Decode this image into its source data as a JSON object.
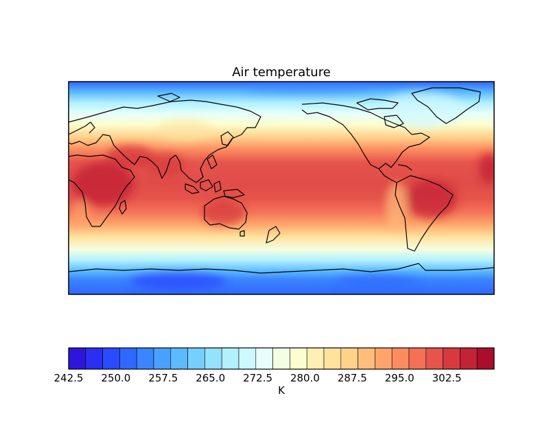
{
  "title": "Air temperature",
  "colorbar": {
    "label": "K",
    "min": 242.5,
    "max": 310.0,
    "step": 2.5,
    "tick_labels": [
      "242.5",
      "250.0",
      "257.5",
      "265.0",
      "272.5",
      "280.0",
      "287.5",
      "295.0",
      "302.5"
    ],
    "colors": [
      "#2f15d9",
      "#2a2ff0",
      "#2a4bff",
      "#2f67ff",
      "#3b85ff",
      "#4aa0ff",
      "#5dbaff",
      "#76d0ff",
      "#94e2ff",
      "#b1f0ff",
      "#cef8ff",
      "#e6fffa",
      "#f3ffe2",
      "#fbffd0",
      "#ffefb2",
      "#ffe29e",
      "#ffd28c",
      "#ffbd7b",
      "#ffa56b",
      "#fc8c5f",
      "#f47156",
      "#e6544c",
      "#d63a3f",
      "#c42236",
      "#ab0d2c"
    ]
  },
  "map": {
    "projection": "cylindrical",
    "field": "air temperature",
    "units": "K",
    "central_longitude": 180
  }
}
